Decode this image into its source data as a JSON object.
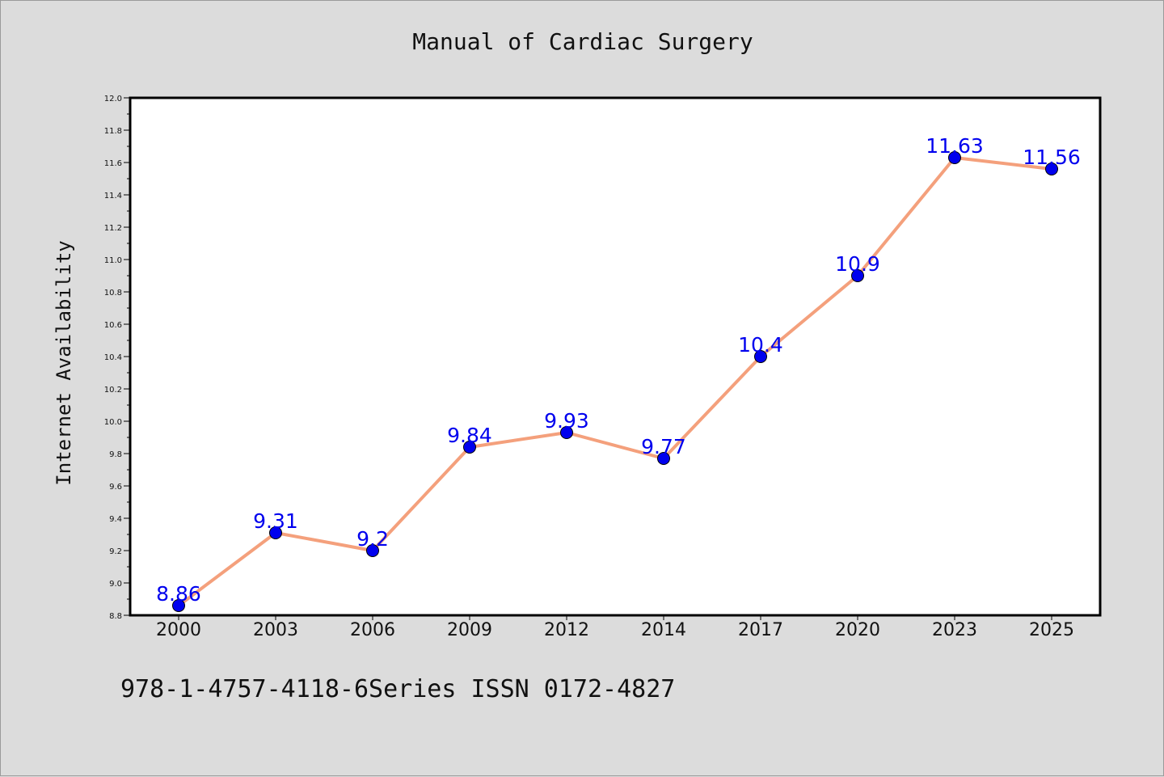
{
  "chart_data": {
    "type": "line",
    "title": "Manual of Cardiac Surgery",
    "xlabel": "",
    "ylabel": "Internet Availability",
    "categories": [
      "2000",
      "2003",
      "2006",
      "2009",
      "2012",
      "2014",
      "2017",
      "2020",
      "2023",
      "2025"
    ],
    "series": [
      {
        "values": [
          8.86,
          9.31,
          9.2,
          9.84,
          9.93,
          9.77,
          10.4,
          10.9,
          11.63,
          11.56
        ],
        "labels": [
          "8.86",
          "9.31",
          "9.2",
          "9.84",
          "9.93",
          "9.77",
          "10.4",
          "10.9",
          "11.63",
          "11.56"
        ],
        "line_color": "#f4a07c",
        "marker_color": "#0000ee"
      }
    ],
    "ylim": [
      8.8,
      12.0
    ],
    "yticks": [
      8.8,
      9.0,
      9.2,
      9.4,
      9.6,
      9.8,
      10.0,
      10.2,
      10.4,
      10.6,
      10.8,
      11.0,
      11.2,
      11.4,
      11.6,
      11.8,
      12.0
    ],
    "ytick_labels": [
      "8.8",
      "9.0",
      "9.2",
      "9.4",
      "9.6",
      "9.8",
      "10.0",
      "10.2",
      "10.4",
      "10.6",
      "10.8",
      "11.0",
      "11.2",
      "11.4",
      "11.6",
      "11.8",
      "12.0"
    ],
    "grid": false,
    "legend": "none",
    "plot_background": "#ffffff",
    "figure_background": "#dcdcdc"
  },
  "footer": {
    "text": "978-1-4757-4118-6Series ISSN 0172-4827"
  }
}
